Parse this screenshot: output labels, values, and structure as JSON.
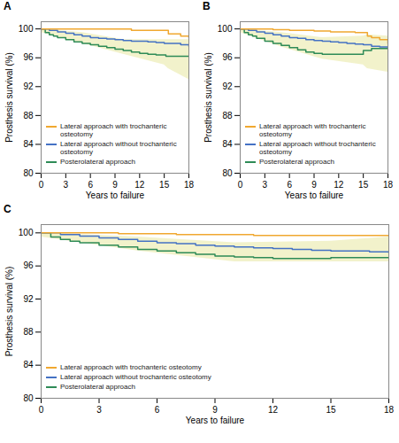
{
  "chart_data": [
    {
      "type": "line",
      "title": "A",
      "xlabel": "Years to failure",
      "ylabel": "Prosthesis survival (%)",
      "xlim": [
        0,
        18
      ],
      "ylim": [
        80,
        101
      ],
      "xticks": [
        0,
        3,
        6,
        9,
        12,
        15,
        18
      ],
      "yticks": [
        80,
        84,
        88,
        92,
        96,
        100
      ],
      "grid": false,
      "legend": "lower left",
      "line_style": "step",
      "series": [
        {
          "name": "Lateral approach with trochanteric osteotomy",
          "color": "#F0A830",
          "x": [
            0,
            1,
            2,
            3,
            4,
            5,
            6,
            7,
            8,
            9,
            10,
            11,
            12,
            13,
            14,
            15,
            15.5,
            16,
            17,
            18
          ],
          "values": [
            100,
            100,
            100,
            100,
            100,
            100,
            100,
            100,
            100,
            100,
            100,
            99.8,
            99.8,
            99.8,
            99.8,
            99.8,
            99.3,
            99.3,
            99.0,
            98.8
          ]
        },
        {
          "name": "Lateral approach without trochanteric osteotomy",
          "color": "#4472C4",
          "x": [
            0,
            1,
            2,
            3,
            4,
            5,
            6,
            7,
            8,
            9,
            10,
            11,
            12,
            13,
            14,
            15,
            16,
            17,
            18
          ],
          "values": [
            100,
            99.8,
            99.6,
            99.4,
            99.2,
            99.0,
            98.8,
            98.7,
            98.6,
            98.5,
            98.4,
            98.3,
            98.3,
            98.2,
            98.1,
            98.0,
            98.0,
            97.8,
            97.6
          ]
        },
        {
          "name": "Posterolateral approach",
          "color": "#2E8B57",
          "x": [
            0,
            0.5,
            1,
            1.5,
            2,
            3,
            4,
            5,
            6,
            7,
            8,
            9,
            10,
            11,
            12,
            13,
            14,
            15,
            15.2,
            16,
            17,
            18
          ],
          "values": [
            100,
            99.5,
            99.2,
            99.0,
            98.8,
            98.5,
            98.2,
            98.0,
            97.8,
            97.6,
            97.4,
            97.2,
            97.0,
            96.8,
            96.6,
            96.5,
            96.4,
            96.4,
            96.2,
            96.2,
            96.2,
            96.2
          ]
        }
      ],
      "band": {
        "color": "#e8e8a0",
        "x": [
          0,
          5,
          10,
          15,
          15.5,
          18
        ],
        "upper": [
          100,
          99.5,
          98.5,
          98.5,
          98.5,
          98.5
        ],
        "lower": [
          99.5,
          98.0,
          96.5,
          95.0,
          94.5,
          93.0
        ]
      }
    },
    {
      "type": "line",
      "title": "B",
      "xlabel": "Years to failure",
      "ylabel": "Prosthesis survival (%)",
      "xlim": [
        0,
        18
      ],
      "ylim": [
        80,
        101
      ],
      "xticks": [
        0,
        3,
        6,
        9,
        12,
        15,
        18
      ],
      "yticks": [
        80,
        84,
        88,
        92,
        96,
        100
      ],
      "grid": false,
      "legend": "lower left",
      "line_style": "step",
      "series": [
        {
          "name": "Lateral approach with trochanteric osteotomy",
          "color": "#F0A830",
          "x": [
            0,
            1,
            2,
            3,
            4,
            5,
            6,
            7,
            8,
            9,
            10,
            11,
            12,
            13,
            14,
            15,
            15.5,
            16,
            17,
            18
          ],
          "values": [
            100,
            100,
            100,
            100,
            99.9,
            99.9,
            99.8,
            99.8,
            99.8,
            99.7,
            99.7,
            99.6,
            99.6,
            99.6,
            99.5,
            99.5,
            99.0,
            98.8,
            98.5,
            98.0
          ]
        },
        {
          "name": "Lateral approach without trochanteric osteotomy",
          "color": "#4472C4",
          "x": [
            0,
            1,
            2,
            3,
            4,
            5,
            6,
            7,
            8,
            9,
            10,
            11,
            12,
            13,
            14,
            15,
            16,
            17,
            18
          ],
          "values": [
            100,
            99.8,
            99.6,
            99.4,
            99.2,
            99.0,
            98.8,
            98.7,
            98.5,
            98.4,
            98.3,
            98.2,
            98.1,
            98.0,
            97.9,
            97.8,
            97.6,
            97.5,
            97.4
          ]
        },
        {
          "name": "Posterolateral approach",
          "color": "#2E8B57",
          "x": [
            0,
            0.5,
            1,
            1.5,
            2,
            3,
            4,
            5,
            6,
            7,
            8,
            9,
            10,
            11,
            12,
            13,
            14,
            15,
            15.2,
            16,
            17,
            18
          ],
          "values": [
            100,
            99.5,
            99.2,
            99.0,
            98.7,
            98.3,
            98.0,
            97.7,
            97.4,
            97.1,
            96.8,
            96.6,
            96.5,
            96.5,
            96.5,
            96.5,
            96.5,
            97.0,
            97.0,
            97.3,
            97.3,
            97.3
          ]
        }
      ],
      "band": {
        "color": "#e8e8a0",
        "x": [
          0,
          5,
          10,
          15,
          15.5,
          18
        ],
        "upper": [
          100,
          99.5,
          98.8,
          99.0,
          99.2,
          99.0
        ],
        "lower": [
          99.5,
          97.5,
          95.8,
          95.0,
          94.5,
          94.0
        ]
      }
    },
    {
      "type": "line",
      "title": "C",
      "xlabel": "Years to failure",
      "ylabel": "Prosthesis survival (%)",
      "xlim": [
        0,
        18
      ],
      "ylim": [
        80,
        101
      ],
      "xticks": [
        0,
        3,
        6,
        9,
        12,
        15,
        18
      ],
      "yticks": [
        80,
        84,
        88,
        92,
        96,
        100
      ],
      "grid": false,
      "legend": "lower left",
      "line_style": "step",
      "series": [
        {
          "name": "Lateral approach with trochanteric osteotomy",
          "color": "#F0A830",
          "x": [
            0,
            1,
            2,
            3,
            4,
            5,
            6,
            7,
            8,
            9,
            10,
            11,
            12,
            13,
            14,
            15,
            16,
            17,
            18
          ],
          "values": [
            100,
            100,
            100,
            100,
            99.9,
            99.9,
            99.9,
            99.8,
            99.8,
            99.8,
            99.8,
            99.7,
            99.7,
            99.7,
            99.7,
            99.7,
            99.7,
            99.7,
            99.6
          ]
        },
        {
          "name": "Lateral approach without trochanteric osteotomy",
          "color": "#4472C4",
          "x": [
            0,
            1,
            2,
            3,
            4,
            5,
            6,
            7,
            8,
            9,
            10,
            11,
            12,
            13,
            14,
            15,
            16,
            17,
            18
          ],
          "values": [
            100,
            99.8,
            99.6,
            99.4,
            99.2,
            99.0,
            98.8,
            98.7,
            98.5,
            98.4,
            98.3,
            98.2,
            98.1,
            98.0,
            97.9,
            97.8,
            97.8,
            97.7,
            97.6
          ]
        },
        {
          "name": "Posterolateral approach",
          "color": "#2E8B57",
          "x": [
            0,
            0.5,
            1,
            1.5,
            2,
            3,
            4,
            5,
            6,
            7,
            8,
            9,
            10,
            11,
            12,
            13,
            14,
            15,
            16,
            17,
            18
          ],
          "values": [
            100,
            99.5,
            99.2,
            99.0,
            98.8,
            98.5,
            98.3,
            98.0,
            97.8,
            97.6,
            97.4,
            97.2,
            97.1,
            97.0,
            96.9,
            96.9,
            96.9,
            97.0,
            97.0,
            97.0,
            97.0
          ]
        }
      ],
      "band": {
        "color": "#e8e8a0",
        "x": [
          0,
          5,
          10,
          15,
          18
        ],
        "upper": [
          100,
          99.5,
          98.8,
          99.0,
          99.5
        ],
        "lower": [
          99.5,
          97.8,
          96.5,
          96.5,
          96.5
        ]
      }
    }
  ]
}
